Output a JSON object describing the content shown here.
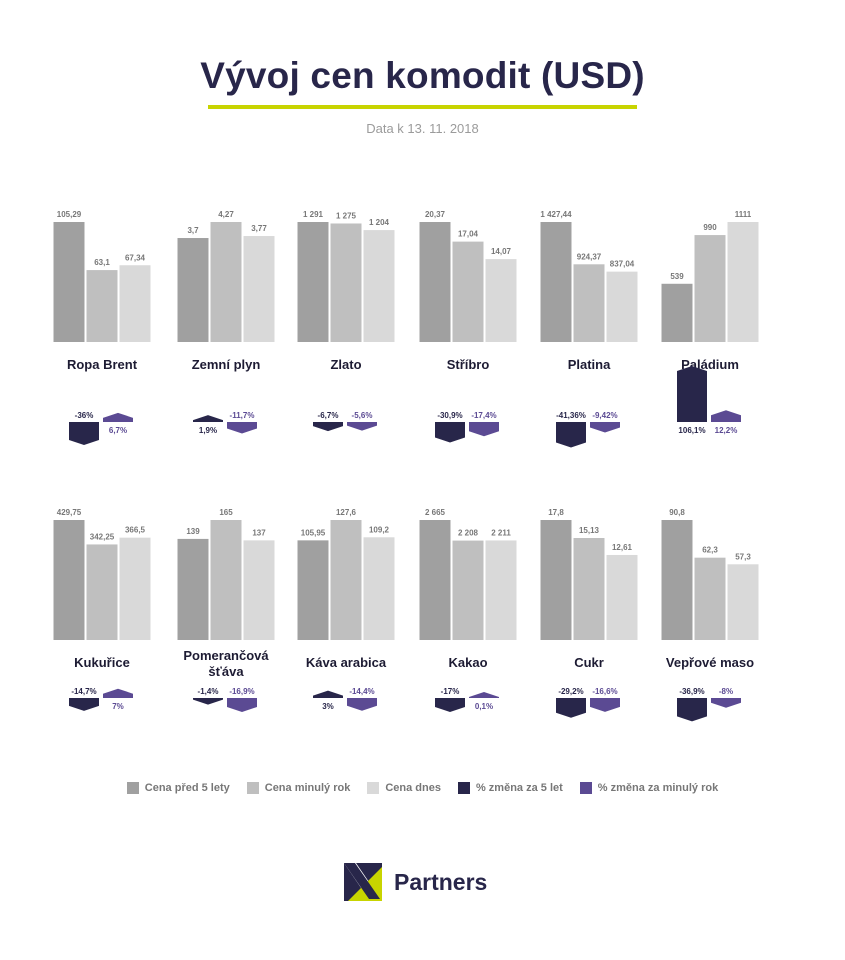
{
  "header": {
    "title": "Vývoj cen komodit (USD)",
    "subtitle": "Data k 13. 11. 2018"
  },
  "colors": {
    "p5": "#a0a0a0",
    "p1": "#bfbfbf",
    "p0": "#d9d9d9",
    "ch5": "#28264a",
    "ch1": "#5b4a93",
    "label": "#777777",
    "accent": "#c8d400"
  },
  "chart_data": {
    "type": "bar",
    "series_names": [
      "Cena před 5 lety",
      "Cena minulý rok",
      "Cena dnes"
    ],
    "change_names": [
      "% změna za 5 let",
      "% změna za minulý rok"
    ],
    "commodities": [
      {
        "name": "Ropa Brent",
        "values": [
          105.29,
          63.1,
          67.34
        ],
        "labels": [
          "105,29",
          "63,1",
          "67,34"
        ],
        "changes": [
          -36,
          6.7
        ],
        "change_labels": [
          "-36%",
          "6,7%"
        ]
      },
      {
        "name": "Zemní plyn",
        "values": [
          3.7,
          4.27,
          3.77
        ],
        "labels": [
          "3,7",
          "4,27",
          "3,77"
        ],
        "changes": [
          1.9,
          -11.7
        ],
        "change_labels": [
          "1,9%",
          "-11,7%"
        ]
      },
      {
        "name": "Zlato",
        "values": [
          1291,
          1275,
          1204
        ],
        "labels": [
          "1 291",
          "1 275",
          "1 204"
        ],
        "changes": [
          -6.7,
          -5.6
        ],
        "change_labels": [
          "-6,7%",
          "-5,6%"
        ]
      },
      {
        "name": "Stříbro",
        "values": [
          20.37,
          17.04,
          14.07
        ],
        "labels": [
          "20,37",
          "17,04",
          "14,07"
        ],
        "changes": [
          -30.9,
          -17.4
        ],
        "change_labels": [
          "-30,9%",
          "-17,4%"
        ]
      },
      {
        "name": "Platina",
        "values": [
          1427.44,
          924.37,
          837.04
        ],
        "labels": [
          "1 427,44",
          "924,37",
          "837,04"
        ],
        "changes": [
          -41.36,
          -9.42
        ],
        "change_labels": [
          "-41,36%",
          "-9,42%"
        ]
      },
      {
        "name": "Paládium",
        "values": [
          539,
          990,
          1111
        ],
        "labels": [
          "539",
          "990",
          "1111"
        ],
        "changes": [
          106.1,
          12.2
        ],
        "change_labels": [
          "106,1%",
          "12,2%"
        ]
      },
      {
        "name": "Kukuřice",
        "values": [
          429.75,
          342.25,
          366.5
        ],
        "labels": [
          "429,75",
          "342,25",
          "366,5"
        ],
        "changes": [
          -14.7,
          7
        ],
        "change_labels": [
          "-14,7%",
          "7%"
        ]
      },
      {
        "name": "Pomerančová šťáva",
        "values": [
          139,
          165,
          137
        ],
        "labels": [
          "139",
          "165",
          "137"
        ],
        "changes": [
          -1.4,
          -16.9
        ],
        "change_labels": [
          "-1,4%",
          "-16,9%"
        ]
      },
      {
        "name": "Káva arabica",
        "values": [
          105.95,
          127.6,
          109.2
        ],
        "labels": [
          "105,95",
          "127,6",
          "109,2"
        ],
        "changes": [
          3,
          -14.4
        ],
        "change_labels": [
          "3%",
          "-14,4%"
        ]
      },
      {
        "name": "Kakao",
        "values": [
          2665,
          2208,
          2211
        ],
        "labels": [
          "2 665",
          "2 208",
          "2 211"
        ],
        "changes": [
          -17,
          0.1
        ],
        "change_labels": [
          "-17%",
          "0,1%"
        ]
      },
      {
        "name": "Cukr",
        "values": [
          17.8,
          15.13,
          12.61
        ],
        "labels": [
          "17,8",
          "15,13",
          "12,61"
        ],
        "changes": [
          -29.2,
          -16.6
        ],
        "change_labels": [
          "-29,2%",
          "-16,6%"
        ]
      },
      {
        "name": "Vepřové maso",
        "values": [
          90.8,
          62.3,
          57.3
        ],
        "labels": [
          "90,8",
          "62,3",
          "57,3"
        ],
        "changes": [
          -36.9,
          -8
        ],
        "change_labels": [
          "-36,9%",
          "-8%"
        ]
      }
    ]
  },
  "logo": {
    "text": "Partners"
  }
}
